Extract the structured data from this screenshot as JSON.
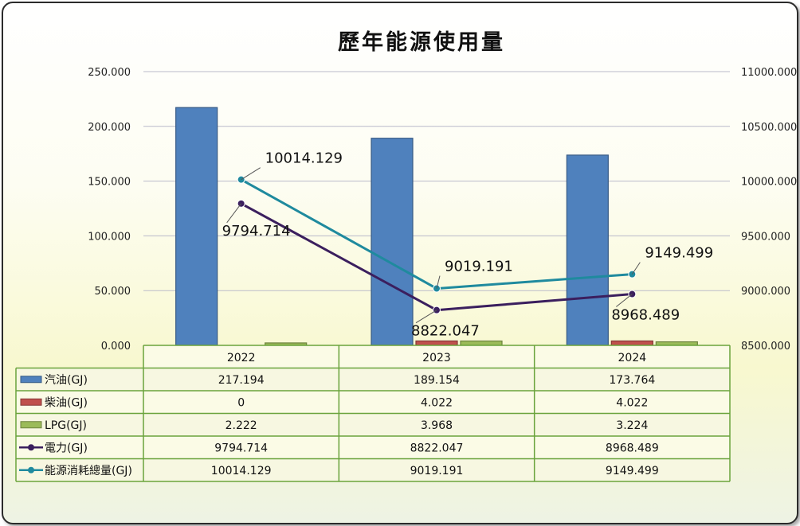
{
  "chart_data": {
    "type": "bar",
    "title": "歷年能源使用量",
    "categories": [
      "2022",
      "2023",
      "2024"
    ],
    "left_axis": {
      "ylim": [
        0,
        250
      ],
      "ticks": [
        "0.000",
        "50.000",
        "100.000",
        "150.000",
        "200.000",
        "250.000"
      ],
      "tick_values": [
        0,
        50,
        100,
        150,
        200,
        250
      ]
    },
    "right_axis": {
      "ylim": [
        8500,
        11000
      ],
      "ticks": [
        "8500.000",
        "9000.000",
        "9500.000",
        "10000.000",
        "10500.000",
        "11000.000"
      ],
      "tick_values": [
        8500,
        9000,
        9500,
        10000,
        10500,
        11000
      ]
    },
    "grid": true,
    "legend": "data-table",
    "series": [
      {
        "name": "汽油(GJ)",
        "kind": "bar",
        "axis": "left",
        "color": "#4f81bd",
        "values": [
          217.194,
          189.154,
          173.764
        ],
        "labels": [
          "217.194",
          "189.154",
          "173.764"
        ]
      },
      {
        "name": "柴油(GJ)",
        "kind": "bar",
        "axis": "left",
        "color": "#c0504d",
        "values": [
          0,
          4.022,
          4.022
        ],
        "labels": [
          "0",
          "4.022",
          "4.022"
        ]
      },
      {
        "name": "LPG(GJ)",
        "kind": "bar",
        "axis": "left",
        "color": "#9bbb59",
        "values": [
          2.222,
          3.968,
          3.224
        ],
        "labels": [
          "2.222",
          "3.968",
          "3.224"
        ]
      },
      {
        "name": "電力(GJ)",
        "kind": "line",
        "axis": "right",
        "color": "#3b1f5e",
        "values": [
          9794.714,
          8822.047,
          8968.489
        ],
        "labels": [
          "9794.714",
          "8822.047",
          "8968.489"
        ]
      },
      {
        "name": "能源消耗總量(GJ)",
        "kind": "line",
        "axis": "right",
        "color": "#1f8a9e",
        "values": [
          10014.129,
          9019.191,
          9149.499
        ],
        "labels": [
          "10014.129",
          "9019.191",
          "9149.499"
        ]
      }
    ]
  }
}
